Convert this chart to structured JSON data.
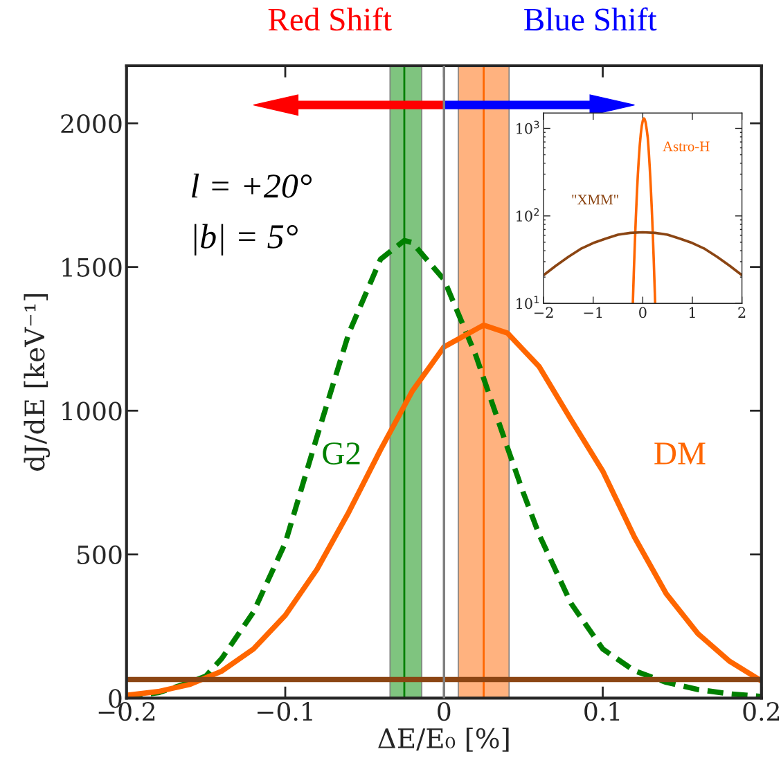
{
  "chart_data": [
    {
      "type": "line",
      "xlabel": "ΔE/E₀ [%]",
      "ylabel": "dJ/dE [keV⁻¹]",
      "xlim": [
        -0.2,
        0.2
      ],
      "ylim": [
        0,
        2200
      ],
      "xticks": [
        {
          "value": -0.2,
          "label": "−0.2"
        },
        {
          "value": -0.1,
          "label": "−0.1"
        },
        0,
        0.1,
        0.2
      ],
      "yticks": [
        0,
        500,
        1000,
        1500,
        2000
      ],
      "grid": false,
      "legend": false,
      "series": [
        {
          "name": "G2",
          "color": "#008000",
          "line_style": "dashed",
          "x": [
            -0.2,
            -0.18,
            -0.16,
            -0.15,
            -0.14,
            -0.12,
            -0.1,
            -0.08,
            -0.06,
            -0.04,
            -0.025,
            -0.02,
            0,
            0.02,
            0.04,
            0.05,
            0.06,
            0.08,
            0.1,
            0.12,
            0.14,
            0.16,
            0.18,
            0.2
          ],
          "values": [
            6,
            19,
            55,
            77,
            138,
            300,
            540,
            910,
            1269,
            1527,
            1592,
            1585,
            1456,
            1193,
            871,
            714,
            568,
            330,
            171,
            95,
            55,
            30,
            15,
            6
          ]
        },
        {
          "name": "DM",
          "color": "#ff6600",
          "line_style": "solid",
          "x": [
            -0.2,
            -0.18,
            -0.16,
            -0.14,
            -0.12,
            -0.1,
            -0.08,
            -0.06,
            -0.04,
            -0.02,
            0,
            0.025,
            0.04,
            0.06,
            0.08,
            0.1,
            0.12,
            0.14,
            0.16,
            0.18,
            0.2
          ],
          "values": [
            10,
            23,
            48,
            94,
            171,
            288,
            448,
            647,
            864,
            1068,
            1222,
            1298,
            1270,
            1153,
            969,
            790,
            560,
            363,
            224,
            128,
            60
          ]
        },
        {
          "color": "#8b4513",
          "line_style": "solid",
          "x": [
            -0.2,
            0.2
          ],
          "values": [
            65,
            65
          ]
        }
      ],
      "ref_lines": [
        {
          "axis": "x",
          "value": 0,
          "color": "#808080"
        },
        {
          "axis": "x",
          "value": -0.025,
          "color": "#008000"
        },
        {
          "axis": "x",
          "value": 0.025,
          "color": "#ff6600"
        }
      ],
      "bands": [
        {
          "axis": "x",
          "from": -0.034,
          "to": -0.014,
          "color": "#7fc47f"
        },
        {
          "axis": "x",
          "from": 0.009,
          "to": 0.041,
          "color": "#ffb27f"
        }
      ],
      "annotations": [
        "Red Shift",
        "Blue Shift",
        "l = +20°",
        "|b| = 5°"
      ]
    },
    {
      "type": "line",
      "xlim": [
        -2,
        2
      ],
      "ylim": [
        10,
        1500
      ],
      "log": "y",
      "xticks": [
        {
          "value": -2,
          "label": "−2"
        },
        {
          "value": -1,
          "label": "−1"
        },
        0,
        1,
        2
      ],
      "yticks": [
        {
          "value": 10,
          "label": "10$^{1}$"
        },
        {
          "value": 100,
          "label": "10$^{2}$"
        },
        {
          "value": 1000,
          "label": "10$^{3}$"
        }
      ],
      "grid": false,
      "legend": false,
      "series": [
        {
          "name": "Astro-H",
          "color": "#ff6600",
          "x": [
            -0.2,
            -0.18,
            -0.16,
            -0.14,
            -0.12,
            -0.1,
            -0.08,
            -0.06,
            -0.04,
            -0.02,
            0,
            0.025,
            0.04,
            0.06,
            0.08,
            0.1,
            0.12,
            0.14,
            0.16,
            0.18,
            0.2,
            0.22,
            0.24,
            0.25
          ],
          "values": [
            10,
            23,
            48,
            94,
            171,
            288,
            448,
            647,
            864,
            1068,
            1222,
            1298,
            1270,
            1153,
            969,
            790,
            560,
            363,
            224,
            128,
            68,
            33,
            15,
            10
          ]
        },
        {
          "name": "\"XMM\"",
          "color": "#8b4513",
          "x": [
            -2,
            -1.75,
            -1.5,
            -1.25,
            -1,
            -0.75,
            -0.5,
            -0.25,
            0,
            0.25,
            0.5,
            0.75,
            1,
            1.25,
            1.5,
            1.75,
            2
          ],
          "values": [
            21,
            27,
            34,
            42,
            49,
            55,
            61,
            64,
            65,
            64,
            61,
            55,
            49,
            42,
            34,
            27,
            21
          ]
        }
      ]
    }
  ]
}
